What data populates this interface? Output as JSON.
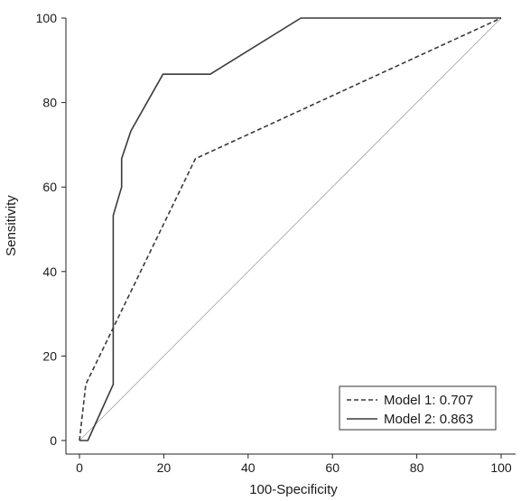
{
  "chart_data": {
    "type": "line",
    "xlabel": "100-Specificity",
    "ylabel": "Sensitivity",
    "xlim": [
      0,
      100
    ],
    "ylim": [
      0,
      100
    ],
    "x_ticks": [
      0,
      20,
      40,
      60,
      80,
      100
    ],
    "y_ticks": [
      0,
      20,
      40,
      60,
      80,
      100
    ],
    "grid": false,
    "legend_position": "bottom-right",
    "reference_line": {
      "x": [
        0,
        100
      ],
      "y": [
        0,
        100
      ],
      "color": "#a0a0a0"
    },
    "series": [
      {
        "name": "Model 1: 0.707",
        "style": "dashed",
        "color": "#3a3a3a",
        "x": [
          0,
          1.5,
          27.5,
          100
        ],
        "y": [
          0,
          13.3,
          66.7,
          100
        ]
      },
      {
        "name": "Model 2: 0.863",
        "style": "solid",
        "color": "#3a3a3a",
        "x": [
          0,
          1.5,
          2,
          8,
          8,
          10,
          10,
          12.2,
          19.8,
          31,
          52.5,
          100
        ],
        "y": [
          0,
          0,
          0,
          13.3,
          53.3,
          60,
          66.7,
          73.3,
          86.7,
          86.7,
          100,
          100
        ]
      }
    ]
  }
}
